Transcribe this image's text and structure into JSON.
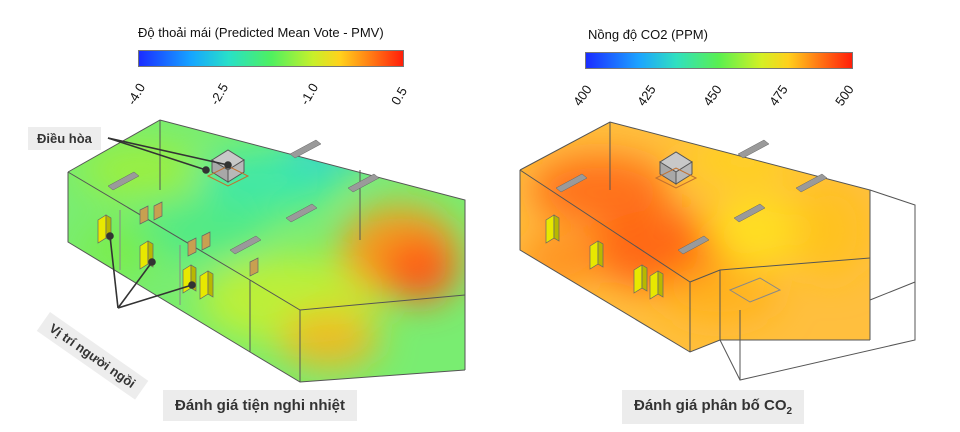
{
  "left": {
    "colorbar_title": "Độ thoải mái (Predicted Mean Vote - PMV)",
    "ticks": [
      "-4.0",
      "-2.5",
      "-1.0",
      "0.5"
    ],
    "label_ac": "Điều hòa",
    "label_seats": "Vị trí người ngồi",
    "caption": "Đánh giá tiện nghi nhiệt"
  },
  "right": {
    "colorbar_title": "Nồng độ CO2 (PPM)",
    "ticks": [
      "400",
      "425",
      "450",
      "475",
      "500"
    ],
    "caption_main": "Đánh giá phân bố CO",
    "caption_sub": "2"
  },
  "colors": {
    "hot": "#ff5a14",
    "warm": "#ffd21c",
    "cool": "#3ef07a",
    "cold": "#20b8ff",
    "outline": "#555555",
    "vent": "#9a9a9a"
  }
}
